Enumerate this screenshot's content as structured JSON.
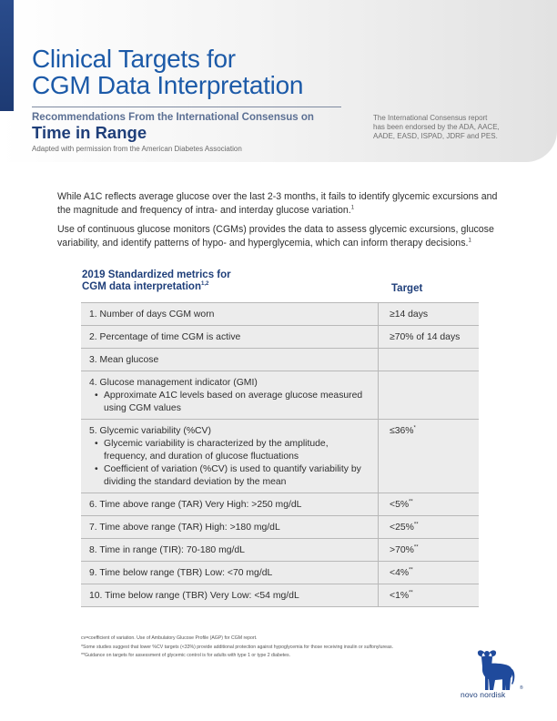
{
  "header": {
    "title_line1": "Clinical Targets for",
    "title_line2": "CGM Data Interpretation",
    "subtitle1": "Recommendations From the International Consensus on",
    "subtitle2": "Time in Range",
    "adapted": "Adapted with permission from the American Diabetes Association",
    "endorse_line1": "The International Consensus report",
    "endorse_line2": "has been endorsed by the ADA, AACE,",
    "endorse_line3": "AADE, EASD, ISPAD, JDRF and PES."
  },
  "intro": {
    "p1": "While A1C reflects average glucose over the last 2-3 months, it fails to identify glycemic excursions and the magnitude and frequency of intra- and interday glucose variation.",
    "p1_ref": "1",
    "p2": "Use of continuous glucose monitors (CGMs) provides the data to assess glycemic excursions, glucose variability, and identify patterns of hypo- and hyperglycemia, which can inform therapy decisions.",
    "p2_ref": "1"
  },
  "table": {
    "heading_line1": "2019 Standardized metrics for",
    "heading_line2": "CGM data interpretation",
    "heading_ref": "1,2",
    "target_heading": "Target",
    "rows": [
      {
        "label": "1. Number of days CGM worn",
        "target": "≥14 days",
        "mark": ""
      },
      {
        "label": "2. Percentage of time CGM is active",
        "target": "≥70% of 14 days",
        "mark": ""
      },
      {
        "label": "3. Mean glucose",
        "target": "",
        "mark": ""
      },
      {
        "label": "4. Glucose management indicator (GMI)",
        "bullets": [
          "Approximate A1C levels based on average glucose measured using CGM values"
        ],
        "target": "",
        "mark": ""
      },
      {
        "label": "5. Glycemic variability (%CV)",
        "bullets": [
          "Glycemic variability is characterized by the amplitude, frequency, and duration of glucose fluctuations",
          "Coefficient of variation (%CV) is used to quantify variability by dividing the standard deviation by the mean"
        ],
        "target": "≤36%",
        "mark": "*"
      },
      {
        "label": "6. Time above range (TAR) Very High: >250 mg/dL",
        "target": "<5%",
        "mark": "**"
      },
      {
        "label": "7. Time above range (TAR) High: >180 mg/dL",
        "target": "<25%",
        "mark": "**"
      },
      {
        "label": "8. Time in range (TIR): 70-180 mg/dL",
        "target": ">70%",
        "mark": "**"
      },
      {
        "label": "9. Time below range (TBR) Low: <70 mg/dL",
        "target": "<4%",
        "mark": "**"
      },
      {
        "label": "10. Time below range (TBR) Very Low: <54 mg/dL",
        "target": "<1%",
        "mark": "**"
      }
    ]
  },
  "footnotes": {
    "f1": "cv=coefficient of variation. Use of Ambulatory Glucose Profile (AGP) for CGM report.",
    "f2": "*Some studies suggest that lower %CV targets (<33%) provide additional protection against hypoglycemia for those receiving insulin or sulfonylureas.",
    "f3": "**Guidance on targets for assessment of glycemic control is for adults with type 1 or type 2 diabetes."
  },
  "logo": {
    "text": "novo nordisk",
    "reg": "®"
  }
}
